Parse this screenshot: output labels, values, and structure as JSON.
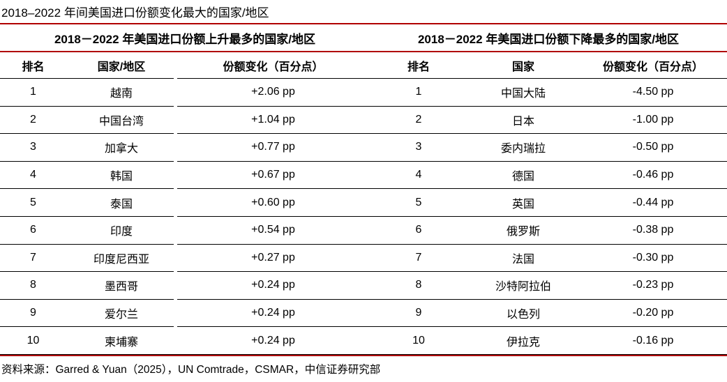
{
  "page_title": "2018–2022 年间美国进口份额变化最大的国家/地区",
  "colors": {
    "accent_red": "#B00000",
    "text": "#000000",
    "row_line": "#000000"
  },
  "left_table": {
    "section_title": "2018－2022 年美国进口份额上升最多的国家/地区",
    "columns": [
      "排名",
      "国家/地区",
      "份额变化（百分点）"
    ],
    "rows": [
      {
        "rank": "1",
        "name": "越南",
        "change": "+2.06 pp"
      },
      {
        "rank": "2",
        "name": "中国台湾",
        "change": "+1.04 pp"
      },
      {
        "rank": "3",
        "name": "加拿大",
        "change": "+0.77 pp"
      },
      {
        "rank": "4",
        "name": "韩国",
        "change": "+0.67 pp"
      },
      {
        "rank": "5",
        "name": "泰国",
        "change": "+0.60 pp"
      },
      {
        "rank": "6",
        "name": "印度",
        "change": "+0.54 pp"
      },
      {
        "rank": "7",
        "name": "印度尼西亚",
        "change": "+0.27 pp"
      },
      {
        "rank": "8",
        "name": "墨西哥",
        "change": "+0.24 pp"
      },
      {
        "rank": "9",
        "name": "爱尔兰",
        "change": "+0.24 pp"
      },
      {
        "rank": "10",
        "name": "柬埔寨",
        "change": "+0.24 pp"
      }
    ]
  },
  "right_table": {
    "section_title": "2018－2022 年美国进口份额下降最多的国家/地区",
    "columns": [
      "排名",
      "国家",
      "份额变化（百分点）"
    ],
    "rows": [
      {
        "rank": "1",
        "name": "中国大陆",
        "change": "-4.50 pp"
      },
      {
        "rank": "2",
        "name": "日本",
        "change": "-1.00 pp"
      },
      {
        "rank": "3",
        "name": "委内瑞拉",
        "change": "-0.50 pp"
      },
      {
        "rank": "4",
        "name": "德国",
        "change": "-0.46 pp"
      },
      {
        "rank": "5",
        "name": "英国",
        "change": "-0.44 pp"
      },
      {
        "rank": "6",
        "name": "俄罗斯",
        "change": "-0.38 pp"
      },
      {
        "rank": "7",
        "name": "法国",
        "change": "-0.30 pp"
      },
      {
        "rank": "8",
        "name": "沙特阿拉伯",
        "change": "-0.23 pp"
      },
      {
        "rank": "9",
        "name": "以色列",
        "change": "-0.20 pp"
      },
      {
        "rank": "10",
        "name": "伊拉克",
        "change": "-0.16 pp"
      }
    ]
  },
  "footer": {
    "source": "资料来源：Garred & Yuan（2025），UN Comtrade，CSMAR，中信证券研究部"
  },
  "chart_data": [
    {
      "type": "table",
      "title": "2018－2022 年美国进口份额上升最多的国家/地区",
      "columns": [
        "排名",
        "国家/地区",
        "份额变化（百分点）"
      ],
      "categories": [
        "越南",
        "中国台湾",
        "加拿大",
        "韩国",
        "泰国",
        "印度",
        "印度尼西亚",
        "墨西哥",
        "爱尔兰",
        "柬埔寨"
      ],
      "values_pp": [
        2.06,
        1.04,
        0.77,
        0.67,
        0.6,
        0.54,
        0.27,
        0.24,
        0.24,
        0.24
      ]
    },
    {
      "type": "table",
      "title": "2018－2022 年美国进口份额下降最多的国家/地区",
      "columns": [
        "排名",
        "国家",
        "份额变化（百分点）"
      ],
      "categories": [
        "中国大陆",
        "日本",
        "委内瑞拉",
        "德国",
        "英国",
        "俄罗斯",
        "法国",
        "沙特阿拉伯",
        "以色列",
        "伊拉克"
      ],
      "values_pp": [
        -4.5,
        -1.0,
        -0.5,
        -0.46,
        -0.44,
        -0.38,
        -0.3,
        -0.23,
        -0.2,
        -0.16
      ]
    }
  ]
}
